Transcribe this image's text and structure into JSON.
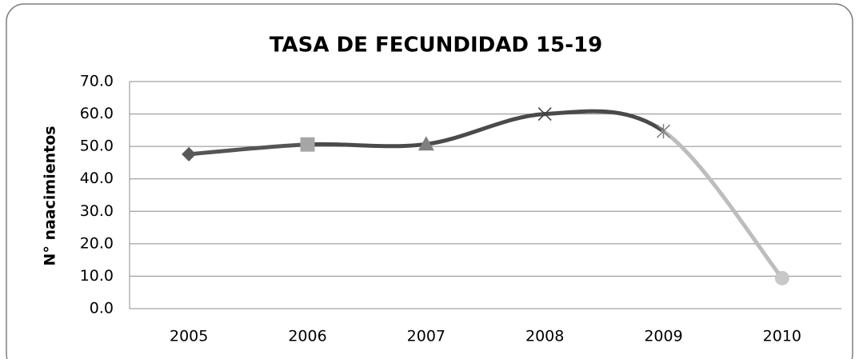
{
  "chart_data": {
    "type": "line",
    "title": "TASA DE FECUNDIDAD 15-19",
    "y_label": "N° naacimientos",
    "categories": [
      "2005",
      "2006",
      "2007",
      "2008",
      "2009",
      "2010"
    ],
    "values": [
      47.6,
      50.6,
      50.7,
      60.0,
      54.7,
      9.4
    ],
    "markers": [
      "diamond",
      "square",
      "triangle",
      "x",
      "star",
      "circle"
    ],
    "point_colors": [
      "#595959",
      "#a6a6a6",
      "#7f7f7f",
      "#404040",
      "#7f7f7f",
      "#c8c8c8"
    ],
    "segment_colors": [
      "#555555",
      "#4a4a4a",
      "#4a4a4a",
      "#4a4a4a",
      "#bdbdbd"
    ],
    "ylim": [
      0,
      70
    ],
    "yticks": [
      {
        "value": 0,
        "label": "0.0"
      },
      {
        "value": 10,
        "label": "10.0"
      },
      {
        "value": 20,
        "label": "20.0"
      },
      {
        "value": 30,
        "label": "30.0"
      },
      {
        "value": 40,
        "label": "40.0"
      },
      {
        "value": 50,
        "label": "50.0"
      },
      {
        "value": 60,
        "label": "60.0"
      },
      {
        "value": 70,
        "label": "70.0"
      }
    ],
    "grid": true,
    "smooth": true
  }
}
